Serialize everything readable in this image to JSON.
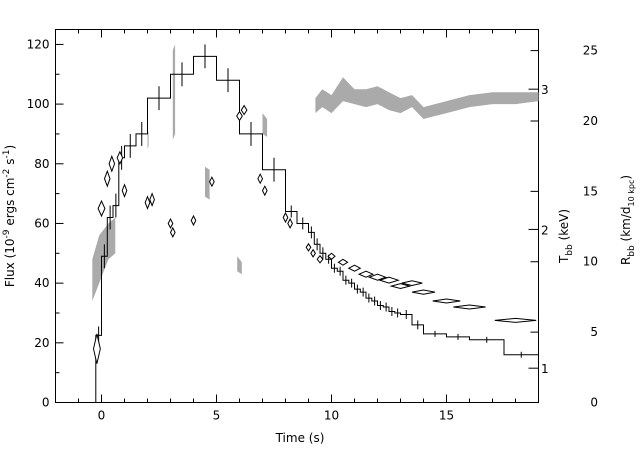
{
  "chart_data": {
    "type": "scatter",
    "title": "",
    "xlabel": "Time (s)",
    "ylabel_left": {
      "base": "Flux (10",
      "exp1": "-9",
      "mid": " ergs cm",
      "exp2": "-2",
      "mid2": " s",
      "exp3": "-1",
      "end": ")"
    },
    "ylabel_right_T": {
      "base": "T",
      "sub": "bb",
      "unit": " (keV)"
    },
    "ylabel_right_R": {
      "base": "R",
      "sub": "bb",
      "mid": " (km/d",
      "sub2": "10 kpc",
      "end": ")"
    },
    "xlim": [
      -2,
      19
    ],
    "ylim_left": [
      0,
      125
    ],
    "ylim_right_R": [
      0,
      26.5
    ],
    "x_ticks": [
      0,
      5,
      10,
      15
    ],
    "x_tick_labels": [
      "0",
      "5",
      "10",
      "15"
    ],
    "y_left_ticks": [
      0,
      20,
      40,
      60,
      80,
      100,
      120
    ],
    "y_left_tick_labels": [
      "0",
      "20",
      "40",
      "60",
      "80",
      "100",
      "120"
    ],
    "y_right_R_ticks": [
      0,
      5,
      10,
      15,
      20,
      25
    ],
    "y_right_R_tick_labels": [
      "0",
      "5",
      "10",
      "15",
      "20",
      "25"
    ],
    "y_right_T_ticks_keV": [
      1,
      2,
      3
    ],
    "y_right_T_tick_labels": [
      "1",
      "2",
      "3"
    ],
    "T_axis_flux_positions": [
      11.5,
      58,
      105
    ],
    "series": [
      {
        "kind": "flux-histogram",
        "x_edges": [
          -0.35,
          -0.25,
          0,
          0.25,
          0.5,
          0.75,
          1.0,
          1.5,
          2.0,
          3.0,
          4.0,
          5.0,
          6.0,
          7.0,
          8.0,
          8.5,
          9.0,
          9.25,
          9.5,
          9.75,
          10.0,
          10.25,
          10.5,
          10.75,
          11.0,
          11.25,
          11.5,
          11.75,
          12.0,
          12.25,
          12.5,
          12.75,
          13.0,
          13.5,
          14.0,
          15.0,
          16.0,
          17.5,
          19.0
        ],
        "values": [
          0,
          22.5,
          49,
          62,
          66,
          82,
          86,
          90,
          102,
          110,
          116,
          108,
          90,
          78,
          64,
          60,
          57,
          53,
          50,
          48,
          45,
          44,
          41,
          40,
          38,
          37,
          35,
          34,
          32.5,
          32,
          30.5,
          30,
          29.5,
          26,
          23,
          22,
          21,
          16
        ],
        "errors": [
          0,
          3,
          4,
          4,
          4,
          4,
          4,
          4,
          4,
          4,
          4,
          4,
          4,
          4,
          2,
          2,
          2,
          2,
          2,
          1.5,
          1.5,
          1.5,
          1.5,
          1.5,
          1.5,
          1.5,
          1.5,
          1.5,
          1.5,
          1.5,
          1.5,
          1.5,
          1.5,
          1.5,
          1,
          1,
          1,
          1
        ]
      },
      {
        "kind": "temperature-band-flux",
        "x": [
          -0.4,
          -0.1,
          0.3,
          0.6,
          1.0,
          1.5,
          2.0,
          2.5,
          3.0,
          3.5,
          4.0,
          5.0,
          6.0,
          7.0,
          8.0,
          8.5,
          9.0,
          9.3,
          9.6,
          10.0,
          10.5,
          11.0,
          11.5,
          12.0,
          12.5,
          13.0,
          13.5,
          14.0,
          14.5,
          15.0,
          15.5,
          16.0,
          17.0,
          18.0,
          19.0
        ],
        "lower": [
          34,
          40,
          48,
          50,
          0,
          0,
          85,
          0,
          0,
          0,
          0,
          0,
          0,
          0,
          0,
          0,
          0,
          97,
          99,
          97,
          101,
          100,
          99,
          100,
          98,
          97,
          99,
          95,
          96,
          97,
          98,
          99,
          100,
          100,
          101
        ],
        "upper": [
          48,
          56,
          60,
          62,
          0,
          0,
          90,
          0,
          0,
          0,
          0,
          0,
          0,
          0,
          0,
          0,
          0,
          102,
          105,
          103,
          109,
          105,
          105,
          106,
          104,
          102,
          103,
          99,
          100,
          101,
          102,
          103,
          104,
          104,
          104
        ],
        "fragments": [
          {
            "x": [
              2.0,
              2.05
            ],
            "lower": [
              85,
              86
            ],
            "upper": [
              90,
              91
            ]
          },
          {
            "x": [
              3.1,
              3.2
            ],
            "lower": [
              88,
              90
            ],
            "upper": [
              118,
              120
            ]
          },
          {
            "x": [
              4.5,
              4.7
            ],
            "lower": [
              69,
              68
            ],
            "upper": [
              79,
              78
            ]
          },
          {
            "x": [
              5.9,
              6.1
            ],
            "lower": [
              44,
              43
            ],
            "upper": [
              49,
              47
            ]
          },
          {
            "x": [
              7.0,
              7.2
            ],
            "lower": [
              90,
              89
            ],
            "upper": [
              97,
              95
            ]
          }
        ]
      },
      {
        "kind": "radius-diamonds",
        "x": [
          -0.2,
          0,
          0.25,
          0.45,
          0.8,
          1.0,
          2.0,
          2.2,
          3.0,
          3.1,
          4.0,
          4.8,
          6.0,
          6.2,
          6.9,
          7.1,
          8.0,
          8.2,
          9.0,
          9.2,
          9.5,
          10.0,
          10.5,
          11.0,
          11.5,
          12.0,
          12.5,
          13.0,
          13.5,
          14.0,
          15.0,
          16.0,
          18.0
        ],
        "y_flux": [
          18,
          65,
          75,
          80,
          82,
          71,
          67,
          68,
          60,
          57,
          61,
          74,
          96,
          98,
          75,
          71,
          62,
          60,
          52,
          50,
          48,
          49,
          47,
          45,
          43,
          42,
          41,
          39,
          40,
          37,
          34,
          32,
          27.5
        ],
        "half_width": [
          0.15,
          0.15,
          0.12,
          0.12,
          0.12,
          0.1,
          0.1,
          0.1,
          0.1,
          0.1,
          0.1,
          0.1,
          0.12,
          0.12,
          0.1,
          0.1,
          0.1,
          0.1,
          0.1,
          0.1,
          0.12,
          0.15,
          0.2,
          0.25,
          0.3,
          0.35,
          0.4,
          0.4,
          0.45,
          0.5,
          0.6,
          0.7,
          0.9
        ],
        "half_height": [
          5,
          2.5,
          2.5,
          2.5,
          2,
          2,
          2,
          2,
          1.5,
          1.5,
          1.5,
          1.5,
          1.5,
          1.5,
          1.5,
          1.5,
          1.5,
          1.5,
          1.2,
          1.2,
          1.2,
          1,
          1,
          1,
          1,
          1,
          1,
          0.8,
          0.8,
          0.7,
          0.6,
          0.6,
          0.5
        ]
      }
    ]
  }
}
